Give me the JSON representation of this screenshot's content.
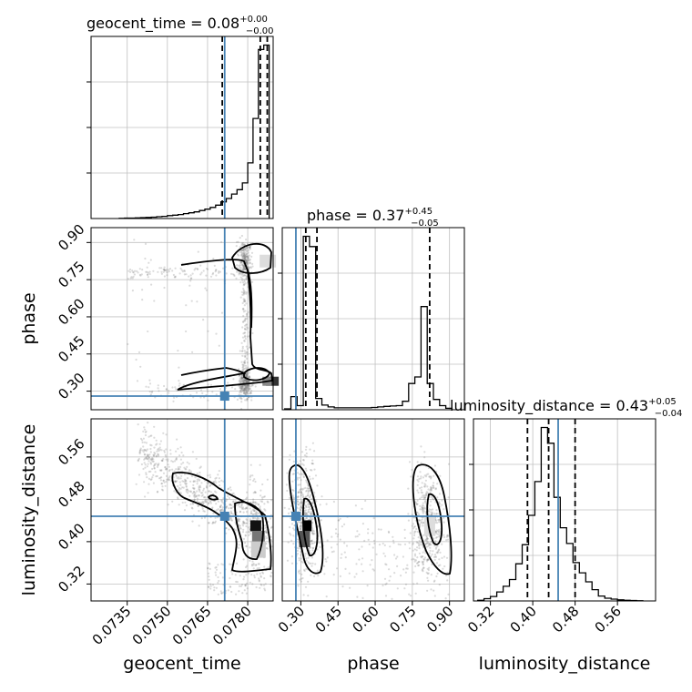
{
  "chart_data": {
    "type": "corner",
    "parameters": [
      "geocent_time",
      "phase",
      "luminosity_distance"
    ],
    "truths": {
      "geocent_time": 0.07714,
      "phase": 0.28,
      "luminosity_distance": 0.448
    },
    "colors": {
      "truth": "#4682b4",
      "hist": "#000000",
      "grid": "#c0c0c0",
      "scatter": "#7f7f7f"
    },
    "titles": {
      "geocent_time": {
        "label": "geocent_time = 0.08",
        "plus": "+0.00",
        "minus": "−0.00"
      },
      "phase": {
        "label": "phase = 0.37",
        "plus": "+0.45",
        "minus": "−0.05"
      },
      "luminosity_distance": {
        "label": "luminosity_distance = 0.43",
        "plus": "+0.05",
        "minus": "−0.04"
      }
    },
    "axes": {
      "geocent_time": {
        "label": "geocent_time",
        "range": [
          0.07215,
          0.07895
        ],
        "ticks": [
          0.0735,
          0.075,
          0.0765,
          0.078
        ],
        "tick_labels": [
          "0.0735",
          "0.0750",
          "0.0765",
          "0.0780"
        ]
      },
      "phase": {
        "label": "phase",
        "range": [
          0.225,
          0.96
        ],
        "ticks": [
          0.3,
          0.45,
          0.6,
          0.75,
          0.9
        ],
        "tick_labels": [
          "0.30",
          "0.45",
          "0.60",
          "0.75",
          "0.90"
        ]
      },
      "luminosity_distance": {
        "label": "luminosity_distance",
        "range": [
          0.288,
          0.632
        ],
        "ticks": [
          0.32,
          0.4,
          0.48,
          0.56
        ],
        "tick_labels": [
          "0.32",
          "0.40",
          "0.48",
          "0.56"
        ]
      }
    },
    "quantiles": {
      "geocent_time": [
        0.07705,
        0.07847,
        0.07873
      ],
      "phase": [
        0.32,
        0.365,
        0.82
      ],
      "luminosity_distance": [
        0.39,
        0.43,
        0.48
      ]
    },
    "histograms": {
      "geocent_time": {
        "edges": [
          0.0732,
          0.0734,
          0.0736,
          0.0738,
          0.074,
          0.0742,
          0.0744,
          0.0746,
          0.0748,
          0.075,
          0.0752,
          0.0754,
          0.0756,
          0.0758,
          0.076,
          0.0762,
          0.0764,
          0.0766,
          0.0768,
          0.077,
          0.0772,
          0.0774,
          0.0776,
          0.0778,
          0.078,
          0.0782,
          0.0784,
          0.0786,
          0.0788
        ],
        "counts": [
          1,
          2,
          2,
          3,
          4,
          5,
          6,
          8,
          10,
          13,
          15,
          18,
          22,
          26,
          30,
          36,
          42,
          50,
          60,
          75,
          90,
          110,
          130,
          160,
          250,
          450,
          760,
          780
        ]
      },
      "phase": {
        "edges": [
          0.235,
          0.26,
          0.285,
          0.31,
          0.335,
          0.36,
          0.385,
          0.41,
          0.435,
          0.46,
          0.485,
          0.51,
          0.535,
          0.56,
          0.585,
          0.61,
          0.635,
          0.66,
          0.685,
          0.71,
          0.735,
          0.76,
          0.785,
          0.81,
          0.835,
          0.86,
          0.885,
          0.91
        ],
        "counts": [
          5,
          70,
          22,
          925,
          870,
          60,
          25,
          15,
          10,
          10,
          10,
          10,
          10,
          10,
          12,
          15,
          18,
          20,
          22,
          45,
          140,
          175,
          550,
          140,
          55,
          22,
          8
        ]
      },
      "luminosity_distance": {
        "edges": [
          0.296,
          0.308,
          0.32,
          0.332,
          0.344,
          0.356,
          0.368,
          0.38,
          0.392,
          0.404,
          0.416,
          0.428,
          0.44,
          0.452,
          0.464,
          0.476,
          0.488,
          0.5,
          0.512,
          0.524,
          0.536,
          0.548,
          0.56,
          0.572,
          0.584,
          0.596,
          0.608
        ],
        "counts": [
          3,
          10,
          20,
          40,
          65,
          95,
          165,
          250,
          380,
          530,
          770,
          700,
          460,
          325,
          255,
          170,
          125,
          85,
          50,
          22,
          12,
          8,
          5,
          3,
          2,
          1
        ]
      }
    },
    "panels_2d": [
      {
        "x": "geocent_time",
        "y": "phase",
        "modes": [
          {
            "x": 0.0779,
            "y": 0.34,
            "peak": "dark"
          },
          {
            "x": 0.0779,
            "y": 0.825,
            "peak": "light"
          }
        ]
      },
      {
        "x": "geocent_time",
        "y": "luminosity_distance",
        "modes": [
          {
            "x": 0.0783,
            "y": 0.43,
            "peak": "dark"
          }
        ]
      },
      {
        "x": "phase",
        "y": "luminosity_distance",
        "modes": [
          {
            "x": 0.32,
            "y": 0.43,
            "peak": "dark"
          },
          {
            "x": 0.82,
            "y": 0.44,
            "peak": "light"
          }
        ]
      }
    ]
  }
}
